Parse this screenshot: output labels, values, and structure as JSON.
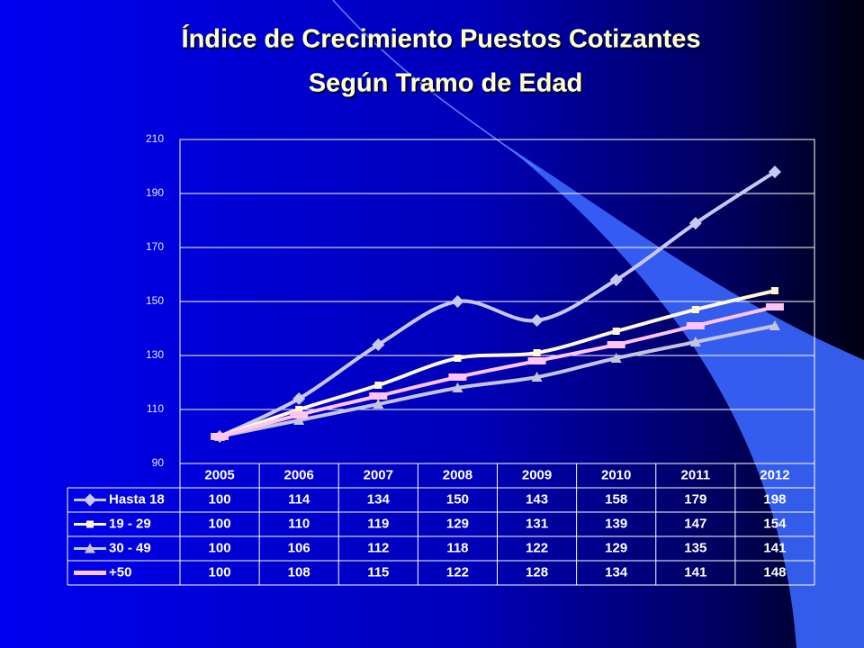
{
  "chart_data": {
    "type": "line",
    "title": [
      "Índice de Crecimiento Puestos Cotizantes",
      "Según Tramo de Edad"
    ],
    "categories": [
      "2005",
      "2006",
      "2007",
      "2008",
      "2009",
      "2010",
      "2011",
      "2012"
    ],
    "series": [
      {
        "name": "Hasta 18",
        "color": "#c8c8f4",
        "marker": "diamond",
        "values": [
          100,
          114,
          134,
          150,
          143,
          158,
          179,
          198
        ]
      },
      {
        "name": "19 - 29",
        "color": "#fff8d0",
        "marker": "square",
        "values": [
          100,
          110,
          119,
          129,
          131,
          139,
          147,
          154
        ]
      },
      {
        "name": "30 - 49",
        "color": "#c4c4dc",
        "marker": "triangle",
        "values": [
          100,
          106,
          112,
          118,
          122,
          129,
          135,
          141
        ]
      },
      {
        "name": "+50",
        "color": "#ffc4f0",
        "marker": "bar",
        "values": [
          100,
          108,
          115,
          122,
          128,
          134,
          141,
          148
        ]
      }
    ],
    "ylim": [
      90,
      210
    ],
    "yticks": [
      90,
      110,
      130,
      150,
      170,
      190,
      210
    ],
    "grid": true
  }
}
